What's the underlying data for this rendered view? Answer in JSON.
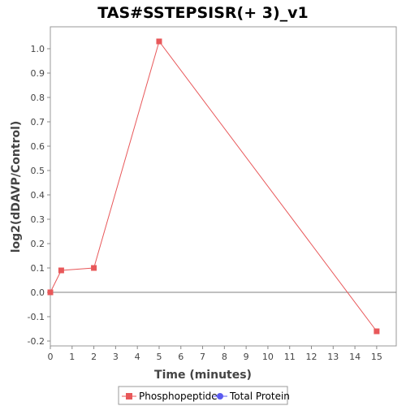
{
  "chart_data": {
    "type": "line",
    "title": "TAS#SSTEPSISR(+ 3)_v1",
    "xlabel": "Time (minutes)",
    "ylabel": "log2(dDAVP/Control)",
    "xlim": [
      0,
      15.9
    ],
    "ylim": [
      -0.22,
      1.09
    ],
    "xticks": [
      0,
      1,
      2,
      3,
      4,
      5,
      6,
      7,
      8,
      9,
      10,
      11,
      12,
      13,
      14,
      15
    ],
    "yticks": [
      -0.2,
      -0.1,
      0.0,
      0.1,
      0.2,
      0.3,
      0.4,
      0.5,
      0.6,
      0.7,
      0.8,
      0.9,
      1.0
    ],
    "ytick_labels": [
      "-0.2",
      "-0.1",
      "0.0",
      "0.1",
      "0.2",
      "0.3",
      "0.4",
      "0.5",
      "0.6",
      "0.7",
      "0.8",
      "0.9",
      "1.0"
    ],
    "grid": false,
    "legend_placement": "bottom",
    "series": [
      {
        "name": "Phosphopeptide",
        "color": "#e8585a",
        "marker": "square",
        "x": [
          0,
          0.5,
          2,
          5,
          15
        ],
        "y": [
          0.0,
          0.09,
          0.1,
          1.03,
          -0.16
        ]
      },
      {
        "name": "Total Protein",
        "color": "#5b5bf0",
        "marker": "circle",
        "x": [],
        "y": []
      }
    ]
  }
}
